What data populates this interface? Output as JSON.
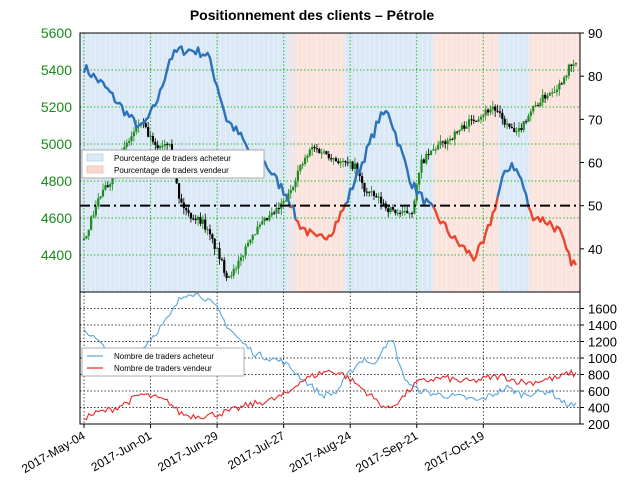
{
  "chart_data": [
    {
      "type": "candlestick+line",
      "title": "Positionnement des clients – Pétrole",
      "yleft_ticks": [
        "4400",
        "4600",
        "4800",
        "5000",
        "5200",
        "5400",
        "5600"
      ],
      "yleft_range": [
        4200,
        5600
      ],
      "yright_ticks": [
        "40",
        "50",
        "60",
        "70",
        "80",
        "90"
      ],
      "yright_range": [
        30,
        90
      ],
      "reference_line_right": 50,
      "legend": [
        "Pourcentage de traders acheteur",
        "Pourcentage de traders vendeur"
      ],
      "colors": {
        "long": "#2d72b8",
        "short": "#e8462f",
        "long_fill": "#dbe9f7",
        "short_fill": "#fbe3de",
        "candle_up": "#1e8c1e",
        "candle_down": "#000000"
      },
      "price_keypoints": [
        [
          0,
          4480
        ],
        [
          6,
          4700
        ],
        [
          12,
          4820
        ],
        [
          18,
          5000
        ],
        [
          24,
          5120
        ],
        [
          30,
          4980
        ],
        [
          36,
          5020
        ],
        [
          40,
          4700
        ],
        [
          44,
          4620
        ],
        [
          50,
          4580
        ],
        [
          56,
          4420
        ],
        [
          60,
          4290
        ],
        [
          64,
          4320
        ],
        [
          70,
          4500
        ],
        [
          76,
          4580
        ],
        [
          82,
          4650
        ],
        [
          86,
          4720
        ],
        [
          90,
          4850
        ],
        [
          96,
          4980
        ],
        [
          102,
          4950
        ],
        [
          108,
          4900
        ],
        [
          114,
          4880
        ],
        [
          118,
          4750
        ],
        [
          124,
          4700
        ],
        [
          128,
          4650
        ],
        [
          134,
          4620
        ],
        [
          138,
          4640
        ],
        [
          142,
          4900
        ],
        [
          148,
          4980
        ],
        [
          154,
          5030
        ],
        [
          160,
          5100
        ],
        [
          166,
          5150
        ],
        [
          172,
          5200
        ],
        [
          178,
          5100
        ],
        [
          182,
          5050
        ],
        [
          188,
          5180
        ],
        [
          194,
          5260
        ],
        [
          200,
          5320
        ],
        [
          204,
          5410
        ],
        [
          207,
          5430
        ]
      ],
      "long_pct_keypoints": [
        [
          0,
          82
        ],
        [
          8,
          78
        ],
        [
          14,
          74
        ],
        [
          20,
          70
        ],
        [
          24,
          68
        ],
        [
          28,
          71
        ],
        [
          32,
          76
        ],
        [
          36,
          84
        ],
        [
          40,
          86
        ],
        [
          46,
          86
        ],
        [
          52,
          85
        ],
        [
          56,
          78
        ],
        [
          60,
          70
        ],
        [
          66,
          66
        ],
        [
          70,
          62
        ],
        [
          76,
          60
        ],
        [
          82,
          55
        ],
        [
          86,
          52
        ],
        [
          90,
          46
        ],
        [
          94,
          44
        ],
        [
          98,
          42
        ],
        [
          104,
          44
        ],
        [
          110,
          50
        ],
        [
          114,
          56
        ],
        [
          120,
          64
        ],
        [
          124,
          70
        ],
        [
          128,
          72
        ],
        [
          132,
          65
        ],
        [
          138,
          55
        ],
        [
          142,
          52
        ],
        [
          148,
          48
        ],
        [
          152,
          45
        ],
        [
          156,
          42
        ],
        [
          160,
          40
        ],
        [
          164,
          38
        ],
        [
          168,
          41
        ],
        [
          172,
          48
        ],
        [
          176,
          56
        ],
        [
          180,
          60
        ],
        [
          184,
          56
        ],
        [
          188,
          48
        ],
        [
          192,
          47
        ],
        [
          196,
          46
        ],
        [
          200,
          44
        ],
        [
          204,
          38
        ],
        [
          207,
          36
        ]
      ],
      "short_threshold": 50
    },
    {
      "type": "line",
      "yright_ticks": [
        "200",
        "400",
        "600",
        "800",
        "1000",
        "1200",
        "1400",
        "1600"
      ],
      "yright_range": [
        200,
        1800
      ],
      "x_ticks": [
        "2017-May-04",
        "2017-Jun-01",
        "2017-Jun-29",
        "2017-Jul-27",
        "2017-Aug-24",
        "2017-Sep-21",
        "2017-Oct-19"
      ],
      "legend": [
        "Nombre de traders acheteur",
        "Nombre de traders vendeur"
      ],
      "series": [
        {
          "name": "Nombre de traders acheteur",
          "color": "#5aa7e0",
          "keypoints": [
            [
              0,
              1350
            ],
            [
              6,
              1200
            ],
            [
              12,
              1000
            ],
            [
              18,
              900
            ],
            [
              24,
              1100
            ],
            [
              30,
              1300
            ],
            [
              36,
              1500
            ],
            [
              40,
              1700
            ],
            [
              44,
              1800
            ],
            [
              50,
              1750
            ],
            [
              56,
              1600
            ],
            [
              60,
              1400
            ],
            [
              66,
              1200
            ],
            [
              72,
              1050
            ],
            [
              78,
              1000
            ],
            [
              84,
              950
            ],
            [
              90,
              800
            ],
            [
              96,
              650
            ],
            [
              100,
              550
            ],
            [
              106,
              580
            ],
            [
              110,
              750
            ],
            [
              114,
              900
            ],
            [
              118,
              1000
            ],
            [
              122,
              900
            ],
            [
              126,
              1150
            ],
            [
              130,
              1200
            ],
            [
              134,
              800
            ],
            [
              138,
              650
            ],
            [
              142,
              600
            ],
            [
              148,
              560
            ],
            [
              154,
              540
            ],
            [
              160,
              520
            ],
            [
              166,
              480
            ],
            [
              172,
              560
            ],
            [
              178,
              640
            ],
            [
              184,
              560
            ],
            [
              190,
              580
            ],
            [
              196,
              600
            ],
            [
              202,
              450
            ],
            [
              207,
              420
            ]
          ]
        },
        {
          "name": "Nombre de traders vendeur",
          "color": "#e8272a",
          "keypoints": [
            [
              0,
              280
            ],
            [
              6,
              340
            ],
            [
              12,
              380
            ],
            [
              18,
              460
            ],
            [
              24,
              560
            ],
            [
              30,
              520
            ],
            [
              36,
              460
            ],
            [
              40,
              340
            ],
            [
              44,
              300
            ],
            [
              50,
              300
            ],
            [
              56,
              320
            ],
            [
              62,
              360
            ],
            [
              68,
              420
            ],
            [
              74,
              460
            ],
            [
              80,
              500
            ],
            [
              86,
              580
            ],
            [
              90,
              700
            ],
            [
              96,
              780
            ],
            [
              102,
              840
            ],
            [
              108,
              820
            ],
            [
              114,
              700
            ],
            [
              120,
              560
            ],
            [
              124,
              460
            ],
            [
              128,
              380
            ],
            [
              134,
              520
            ],
            [
              140,
              700
            ],
            [
              146,
              740
            ],
            [
              152,
              760
            ],
            [
              158,
              720
            ],
            [
              164,
              720
            ],
            [
              170,
              760
            ],
            [
              176,
              780
            ],
            [
              182,
              720
            ],
            [
              188,
              700
            ],
            [
              194,
              740
            ],
            [
              200,
              760
            ],
            [
              204,
              820
            ],
            [
              207,
              800
            ]
          ]
        }
      ]
    }
  ]
}
